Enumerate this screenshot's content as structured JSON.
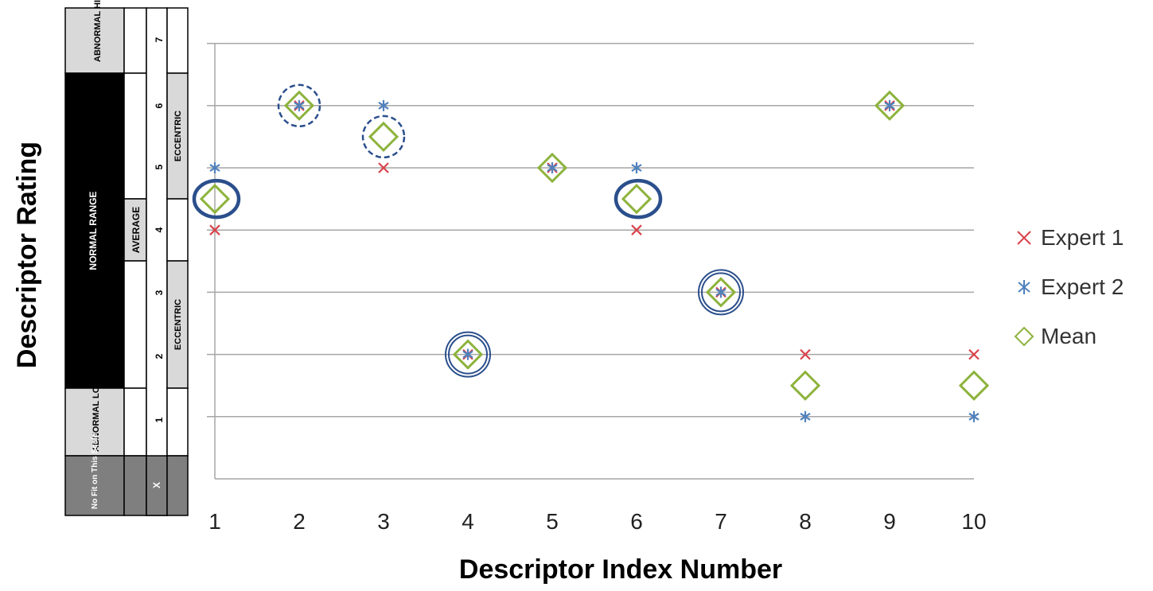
{
  "scale_table": {
    "high_label": "ABNORMAL HIGH",
    "normal_label": "NORMAL RANGE",
    "low_label": "ABNORMAL LOW",
    "nofit_label": "No Fit on This Scale",
    "average_label": "AVERAGE",
    "eccentric_label": "ECCENTRIC",
    "numbers": [
      "7",
      "6",
      "5",
      "4",
      "3",
      "2",
      "1"
    ],
    "x_mark": "X"
  },
  "colors": {
    "expert1": "#d9434b",
    "expert2": "#4f81bd",
    "mean": "#8db33c",
    "highlight": "#2b4f8c",
    "grid": "#a6a6a6"
  },
  "chart_data": {
    "type": "scatter",
    "xlabel": "Descriptor Index Number",
    "ylabel": "Descriptor Rating",
    "x_ticks": [
      "1",
      "2",
      "3",
      "4",
      "5",
      "6",
      "7",
      "8",
      "9",
      "10"
    ],
    "xlim": [
      1,
      10
    ],
    "ylim": [
      0,
      7
    ],
    "grid": true,
    "legend_position": "right",
    "series": [
      {
        "name": "Expert 1",
        "marker": "x",
        "points": [
          [
            1,
            4
          ],
          [
            2,
            6
          ],
          [
            3,
            5
          ],
          [
            4,
            2
          ],
          [
            5,
            5
          ],
          [
            6,
            4
          ],
          [
            7,
            3
          ],
          [
            8,
            2
          ],
          [
            9,
            6
          ],
          [
            10,
            2
          ]
        ]
      },
      {
        "name": "Expert 2",
        "marker": "asterisk",
        "points": [
          [
            1,
            5
          ],
          [
            2,
            6
          ],
          [
            3,
            6
          ],
          [
            4,
            2
          ],
          [
            5,
            5
          ],
          [
            6,
            5
          ],
          [
            7,
            3
          ],
          [
            8,
            1
          ],
          [
            9,
            6
          ],
          [
            10,
            1
          ]
        ]
      },
      {
        "name": "Mean",
        "marker": "diamond",
        "points": [
          [
            1,
            4.5
          ],
          [
            2,
            6
          ],
          [
            3,
            5.5
          ],
          [
            4,
            2
          ],
          [
            5,
            5
          ],
          [
            6,
            4.5
          ],
          [
            7,
            3
          ],
          [
            8,
            1.5
          ],
          [
            9,
            6
          ],
          [
            10,
            1.5
          ]
        ]
      }
    ],
    "annotations": [
      {
        "style": "dashed-circle",
        "x": 2,
        "y": 6
      },
      {
        "style": "dashed-circle",
        "x": 3,
        "y": 5.5
      },
      {
        "style": "bold-ellipse",
        "x": 1,
        "y": 4.5
      },
      {
        "style": "bold-ellipse",
        "x": 6,
        "y": 4.5
      },
      {
        "style": "double-circle",
        "x": 4,
        "y": 2
      },
      {
        "style": "double-circle",
        "x": 7,
        "y": 3
      }
    ]
  }
}
